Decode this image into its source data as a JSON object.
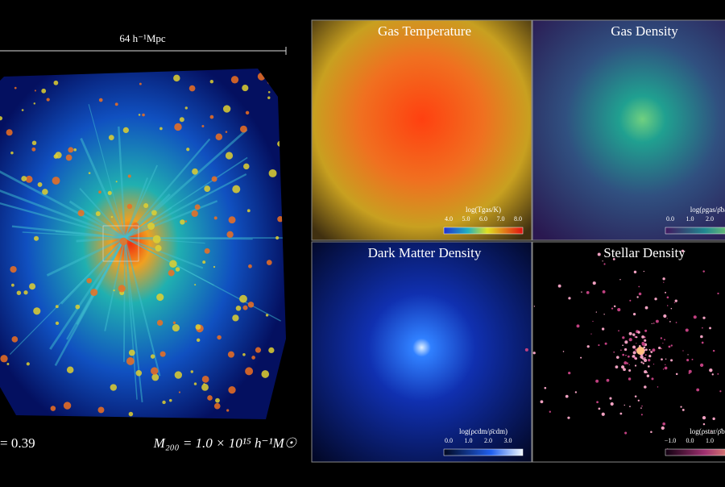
{
  "scale_bar": {
    "label": "64 h⁻¹Mpc"
  },
  "redshift": "= 0.39",
  "mass": "M₂₀₀ = 1.0 × 10¹⁵ h⁻¹M☉",
  "panels": [
    {
      "title": "Gas Temperature",
      "colorbar_label": "log(Tgas/K)",
      "ticks": [
        "4.0",
        "5.0",
        "6.0",
        "7.0",
        "8.0"
      ]
    },
    {
      "title": "Gas Density",
      "colorbar_label": "log(ρgas/ρ̄ba",
      "ticks": [
        "0.0",
        "1.0",
        "2.0"
      ]
    },
    {
      "title": "Dark Matter Density",
      "colorbar_label": "log(ρcdm/ρ̄cdm)",
      "ticks": [
        "0.0",
        "1.0",
        "2.0",
        "3.0"
      ]
    },
    {
      "title": "Stellar Density",
      "colorbar_label": "log(ρstar/ρ̄ba",
      "ticks": [
        "−1.0",
        "0.0",
        "1.0"
      ]
    }
  ]
}
